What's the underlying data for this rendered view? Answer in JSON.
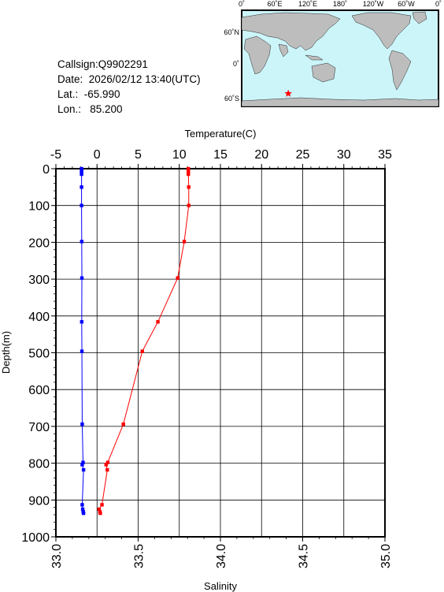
{
  "info": {
    "callsign": "Callsign:Q9902291",
    "date": "Date:  2026/02/12 13:40(UTC)",
    "lat": "Lat.:  -65.990",
    "lon": "Lon.:   85.200"
  },
  "map": {
    "top_labels": [
      "0˚",
      "60˚E",
      "120˚E",
      "180˚",
      "120˚W",
      "60˚W",
      "0˚"
    ],
    "left_labels": [
      "60˚N",
      "0˚",
      "60˚S"
    ],
    "ocean_color": "#ccf5fa",
    "land_color": "#bdbdbd",
    "marker": {
      "lon": 85.2,
      "lat": -65.99,
      "color": "#ff0000",
      "icon": "star-icon"
    }
  },
  "chart_data": {
    "type": "line",
    "top_axis": {
      "label": "Temperature(C)",
      "range": [
        -5,
        35
      ],
      "ticks": [
        "-5",
        "0",
        "5",
        "10",
        "15",
        "20",
        "25",
        "30",
        "35"
      ]
    },
    "bottom_axis": {
      "label": "Salinity",
      "range": [
        33.0,
        35.0
      ],
      "ticks": [
        "33.0",
        "33.5",
        "34.0",
        "34.5",
        "35.0"
      ]
    },
    "left_axis": {
      "label": "Depth(m)",
      "range": [
        0,
        1000
      ],
      "reversed": true,
      "ticks": [
        "0",
        "100",
        "200",
        "300",
        "400",
        "500",
        "600",
        "700",
        "800",
        "900",
        "1000"
      ]
    },
    "grid": true,
    "series": [
      {
        "kind": "temperature",
        "axis": "top",
        "color": "#ff0000",
        "points": [
          [
            11.1,
            0
          ],
          [
            11.1,
            5
          ],
          [
            11.1,
            10
          ],
          [
            11.1,
            15
          ],
          [
            11.15,
            50
          ],
          [
            11.15,
            100
          ],
          [
            10.6,
            198
          ],
          [
            9.8,
            297
          ],
          [
            7.4,
            416
          ],
          [
            5.5,
            496
          ],
          [
            3.2,
            694
          ],
          [
            1.3,
            798
          ],
          [
            1.1,
            804
          ],
          [
            1.25,
            818
          ],
          [
            0.6,
            913
          ],
          [
            0.25,
            925
          ],
          [
            0.35,
            932
          ],
          [
            0.4,
            936
          ]
        ]
      },
      {
        "kind": "salinity",
        "axis": "bottom",
        "color": "#0000ff",
        "points": [
          [
            33.156,
            0
          ],
          [
            33.156,
            5
          ],
          [
            33.156,
            10
          ],
          [
            33.156,
            15
          ],
          [
            33.156,
            50
          ],
          [
            33.156,
            100
          ],
          [
            33.157,
            198
          ],
          [
            33.158,
            297
          ],
          [
            33.157,
            416
          ],
          [
            33.158,
            496
          ],
          [
            33.16,
            694
          ],
          [
            33.165,
            798
          ],
          [
            33.16,
            804
          ],
          [
            33.168,
            818
          ],
          [
            33.16,
            913
          ],
          [
            33.163,
            925
          ],
          [
            33.166,
            932
          ],
          [
            33.168,
            936
          ]
        ]
      }
    ]
  }
}
